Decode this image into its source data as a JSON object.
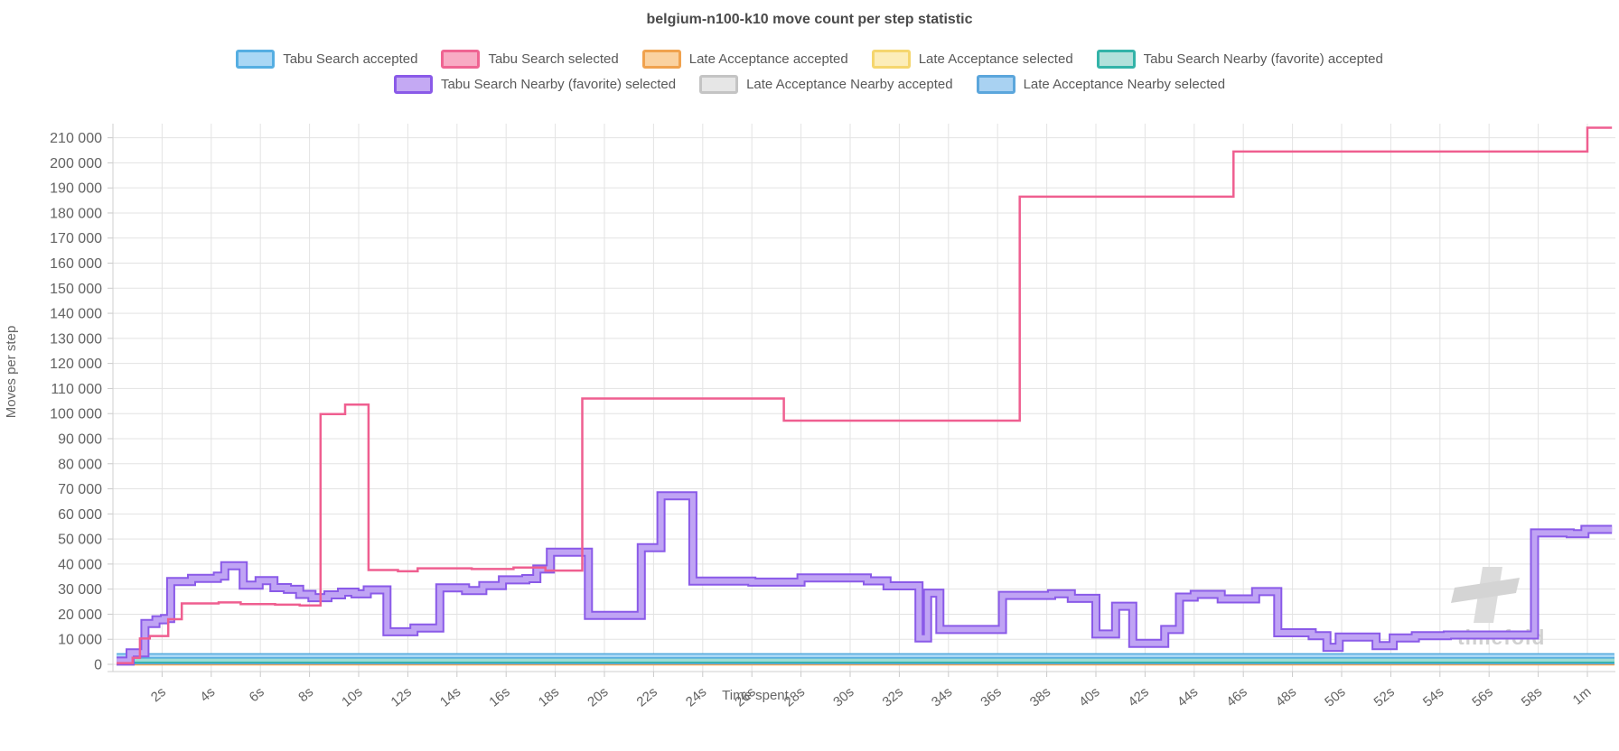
{
  "title": "belgium-n100-k10 move count per step statistic",
  "axes": {
    "y_title": "Moves per step",
    "x_title": "Time spent"
  },
  "watermark": "timefold",
  "legend": {
    "rows": [
      [
        {
          "label": "Tabu Search accepted",
          "fill": "#a9d7f5",
          "border": "#55aee2"
        },
        {
          "label": "Tabu Search selected",
          "fill": "#f8abc4",
          "border": "#ef6492"
        },
        {
          "label": "Late Acceptance accepted",
          "fill": "#fad2a0",
          "border": "#f0a24e"
        },
        {
          "label": "Late Acceptance selected",
          "fill": "#fcedb9",
          "border": "#f5d66e"
        },
        {
          "label": "Tabu Search Nearby (favorite) accepted",
          "fill": "#b2e1db",
          "border": "#33b3a8"
        }
      ],
      [
        {
          "label": "Tabu Search Nearby (favorite) selected",
          "fill": "#c4a9f3",
          "border": "#8a5ae8"
        },
        {
          "label": "Late Acceptance Nearby accepted",
          "fill": "#e6e6e6",
          "border": "#c4c4c4"
        },
        {
          "label": "Late Acceptance Nearby selected",
          "fill": "#a9d2f2",
          "border": "#5ba6dc"
        }
      ]
    ]
  },
  "chart_data": {
    "type": "line",
    "stepped": true,
    "title": "belgium-n100-k10 move count per step statistic",
    "xlabel": "Time spent",
    "ylabel": "Moves per step",
    "x_unit": "seconds",
    "xlim": [
      0,
      61.1
    ],
    "ylim": [
      0,
      215000
    ],
    "grid": true,
    "x_tick_labels": [
      "2s",
      "4s",
      "6s",
      "8s",
      "10s",
      "12s",
      "14s",
      "16s",
      "18s",
      "20s",
      "22s",
      "24s",
      "26s",
      "28s",
      "30s",
      "32s",
      "34s",
      "36s",
      "38s",
      "40s",
      "42s",
      "44s",
      "46s",
      "48s",
      "50s",
      "52s",
      "54s",
      "56s",
      "58s",
      "1m"
    ],
    "y_tick_labels": [
      "0",
      "10 000",
      "20 000",
      "30 000",
      "40 000",
      "50 000",
      "60 000",
      "70 000",
      "80 000",
      "90 000",
      "100 000",
      "110 000",
      "120 000",
      "130 000",
      "140 000",
      "150 000",
      "160 000",
      "170 000",
      "180 000",
      "190 000",
      "200 000",
      "210 000"
    ],
    "y_tick_step": 10000,
    "series": [
      {
        "name": "Late Acceptance Nearby accepted",
        "color": "#d9d9d9",
        "width": 4,
        "inner_color": null,
        "inner_width": 0,
        "dash": null,
        "end": 61.1,
        "points": [
          [
            0.15,
            900
          ]
        ]
      },
      {
        "name": "Late Acceptance selected",
        "color": "#f5d66e",
        "width": 2.5,
        "inner_color": null,
        "inner_width": 0,
        "dash": "8 5",
        "end": 61.1,
        "points": [
          [
            0.15,
            300
          ]
        ]
      },
      {
        "name": "Late Acceptance accepted",
        "color": "#f0a24e",
        "width": 2.5,
        "inner_color": null,
        "inner_width": 0,
        "dash": null,
        "end": 61.1,
        "points": [
          [
            0.15,
            0
          ]
        ]
      },
      {
        "name": "Late Acceptance Nearby selected",
        "color": "#5ba6dc",
        "width": 5,
        "inner_color": "#a9d2f2",
        "inner_width": 2.5,
        "dash": null,
        "end": 61.1,
        "points": [
          [
            0.15,
            900
          ]
        ]
      },
      {
        "name": "Tabu Search Nearby (favorite) accepted",
        "color": "#2fb2a8",
        "width": 7,
        "inner_color": "#9edcd5",
        "inner_width": 3.5,
        "dash": null,
        "end": 61.1,
        "points": [
          [
            0.15,
            1700
          ]
        ]
      },
      {
        "name": "Tabu Search accepted",
        "color": "#4fa8dc",
        "width": 6,
        "inner_color": "#a9d7f5",
        "inner_width": 3,
        "dash": null,
        "end": 61.1,
        "points": [
          [
            0.15,
            3400
          ]
        ]
      },
      {
        "name": "Tabu Search Nearby (favorite) selected",
        "color": "#8a5ae8",
        "width": 10,
        "inner_color": "#c0a4f4",
        "inner_width": 6,
        "dash": null,
        "end": 61.0,
        "points": [
          [
            0.15,
            1300
          ],
          [
            0.7,
            4600
          ],
          [
            1.3,
            16300
          ],
          [
            1.75,
            17800
          ],
          [
            2.1,
            18300
          ],
          [
            2.35,
            33000
          ],
          [
            3.2,
            34300
          ],
          [
            4.25,
            35200
          ],
          [
            4.55,
            39300
          ],
          [
            5.3,
            31600
          ],
          [
            5.95,
            33400
          ],
          [
            6.55,
            30600
          ],
          [
            7.1,
            29900
          ],
          [
            7.6,
            27900
          ],
          [
            8.1,
            26600
          ],
          [
            8.75,
            27700
          ],
          [
            9.3,
            28800
          ],
          [
            9.85,
            28100
          ],
          [
            10.35,
            29700
          ],
          [
            11.15,
            13000
          ],
          [
            12.25,
            14500
          ],
          [
            13.3,
            30500
          ],
          [
            14.35,
            29400
          ],
          [
            15.05,
            31400
          ],
          [
            15.85,
            33700
          ],
          [
            16.8,
            34200
          ],
          [
            17.25,
            38000
          ],
          [
            17.8,
            44700
          ],
          [
            19.35,
            19500
          ],
          [
            21.5,
            46500
          ],
          [
            22.3,
            67200
          ],
          [
            23.6,
            33200
          ],
          [
            26.0,
            32800
          ],
          [
            28.0,
            34500
          ],
          [
            30.7,
            33300
          ],
          [
            31.5,
            31300
          ],
          [
            32.8,
            10500
          ],
          [
            33.15,
            28400
          ],
          [
            33.65,
            13900
          ],
          [
            36.2,
            27500
          ],
          [
            38.2,
            28200
          ],
          [
            39.0,
            26300
          ],
          [
            40.0,
            12100
          ],
          [
            40.8,
            23200
          ],
          [
            41.5,
            8400
          ],
          [
            42.8,
            13900
          ],
          [
            43.4,
            26800
          ],
          [
            44.0,
            27900
          ],
          [
            45.1,
            26100
          ],
          [
            46.5,
            29000
          ],
          [
            47.4,
            12600
          ],
          [
            48.8,
            11400
          ],
          [
            49.4,
            6800
          ],
          [
            49.9,
            10900
          ],
          [
            51.4,
            7500
          ],
          [
            52.1,
            10500
          ],
          [
            53.0,
            11400
          ],
          [
            54.3,
            11700
          ],
          [
            57.85,
            52400
          ],
          [
            59.3,
            52100
          ],
          [
            59.9,
            53800
          ]
        ]
      },
      {
        "name": "Tabu Search selected",
        "color": "#ef5f90",
        "width": 2.5,
        "inner_color": null,
        "inner_width": 0,
        "dash": null,
        "end": 61.0,
        "points": [
          [
            0.15,
            500
          ],
          [
            0.8,
            2600
          ],
          [
            1.1,
            10300
          ],
          [
            1.5,
            11300
          ],
          [
            2.25,
            18000
          ],
          [
            2.8,
            24300
          ],
          [
            4.3,
            24700
          ],
          [
            5.2,
            24000
          ],
          [
            6.6,
            23800
          ],
          [
            7.6,
            23500
          ],
          [
            8.45,
            99800
          ],
          [
            9.45,
            103600
          ],
          [
            10.4,
            37600
          ],
          [
            11.6,
            37100
          ],
          [
            12.4,
            38300
          ],
          [
            14.6,
            38000
          ],
          [
            16.3,
            38600
          ],
          [
            17.6,
            37400
          ],
          [
            19.1,
            106000
          ],
          [
            27.3,
            97200
          ],
          [
            36.9,
            186500
          ],
          [
            45.6,
            204500
          ],
          [
            60.0,
            214000
          ]
        ]
      }
    ]
  }
}
